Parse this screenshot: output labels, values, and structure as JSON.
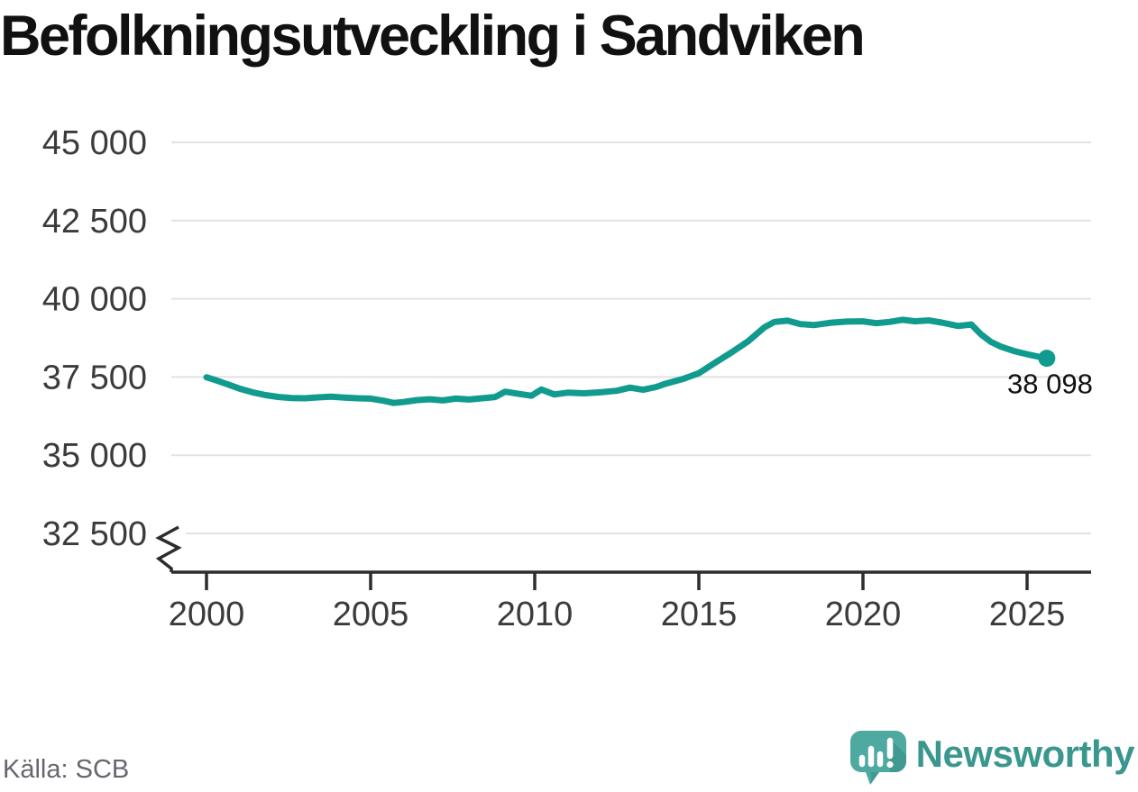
{
  "title": "Befolkningsutveckling i Sandviken",
  "source": "Källa: SCB",
  "branding": {
    "name": "Newsworthy",
    "icon": "newsworthy-speech-bubble-bar-chart-icon"
  },
  "colors": {
    "background": "#ffffff",
    "line": "#119b8e",
    "end_dot": "#119b8e",
    "grid": "#e2e2e2",
    "axis": "#2d2d2d",
    "tick_text": "#3b3b3b",
    "title_text": "#111111",
    "source_text": "#65676e",
    "end_label_text": "#111111",
    "logo_mark": "#4ea9a0",
    "logo_mark_shadow": "#41998f",
    "logo_text": "#3a978e"
  },
  "chart_data": {
    "type": "line",
    "title": "Befolkningsutveckling i Sandviken",
    "source": "Källa: SCB",
    "series_name": "Befolkning i Sandviken",
    "grid": "horizontal",
    "legend": "none",
    "axis_break_bottom_left": true,
    "ylim": [
      32500,
      45000
    ],
    "xlim": [
      2000,
      2025.6
    ],
    "y_ticks": [
      {
        "value": 45000,
        "label": "45 000"
      },
      {
        "value": 42500,
        "label": "42 500"
      },
      {
        "value": 40000,
        "label": "40 000"
      },
      {
        "value": 37500,
        "label": "37 500"
      },
      {
        "value": 35000,
        "label": "35 000"
      },
      {
        "value": 32500,
        "label": "32 500"
      }
    ],
    "x_ticks": [
      {
        "value": 2000,
        "label": "2000"
      },
      {
        "value": 2005,
        "label": "2005"
      },
      {
        "value": 2010,
        "label": "2010"
      },
      {
        "value": 2015,
        "label": "2015"
      },
      {
        "value": 2020,
        "label": "2020"
      },
      {
        "value": 2025,
        "label": "2025"
      }
    ],
    "points": [
      [
        2000.0,
        37490
      ],
      [
        2000.3,
        37390
      ],
      [
        2000.6,
        37280
      ],
      [
        2001.0,
        37130
      ],
      [
        2001.4,
        37010
      ],
      [
        2001.8,
        36920
      ],
      [
        2002.2,
        36860
      ],
      [
        2002.6,
        36830
      ],
      [
        2003.0,
        36820
      ],
      [
        2003.4,
        36850
      ],
      [
        2003.8,
        36870
      ],
      [
        2004.2,
        36840
      ],
      [
        2004.6,
        36820
      ],
      [
        2005.0,
        36810
      ],
      [
        2005.4,
        36740
      ],
      [
        2005.7,
        36670
      ],
      [
        2006.0,
        36700
      ],
      [
        2006.4,
        36760
      ],
      [
        2006.8,
        36790
      ],
      [
        2007.2,
        36750
      ],
      [
        2007.6,
        36810
      ],
      [
        2008.0,
        36780
      ],
      [
        2008.4,
        36820
      ],
      [
        2008.8,
        36860
      ],
      [
        2009.1,
        37030
      ],
      [
        2009.5,
        36960
      ],
      [
        2009.9,
        36900
      ],
      [
        2010.2,
        37100
      ],
      [
        2010.6,
        36940
      ],
      [
        2011.0,
        37000
      ],
      [
        2011.5,
        36980
      ],
      [
        2012.0,
        37010
      ],
      [
        2012.5,
        37060
      ],
      [
        2012.9,
        37160
      ],
      [
        2013.3,
        37090
      ],
      [
        2013.7,
        37180
      ],
      [
        2014.0,
        37290
      ],
      [
        2014.5,
        37430
      ],
      [
        2015.0,
        37620
      ],
      [
        2015.5,
        37960
      ],
      [
        2016.0,
        38290
      ],
      [
        2016.5,
        38640
      ],
      [
        2017.0,
        39090
      ],
      [
        2017.3,
        39260
      ],
      [
        2017.7,
        39300
      ],
      [
        2018.1,
        39190
      ],
      [
        2018.5,
        39160
      ],
      [
        2019.0,
        39230
      ],
      [
        2019.5,
        39270
      ],
      [
        2020.0,
        39280
      ],
      [
        2020.4,
        39220
      ],
      [
        2020.8,
        39260
      ],
      [
        2021.2,
        39330
      ],
      [
        2021.6,
        39280
      ],
      [
        2022.0,
        39310
      ],
      [
        2022.4,
        39240
      ],
      [
        2022.9,
        39130
      ],
      [
        2023.3,
        39180
      ],
      [
        2023.6,
        38860
      ],
      [
        2023.9,
        38620
      ],
      [
        2024.2,
        38470
      ],
      [
        2024.6,
        38330
      ],
      [
        2025.0,
        38230
      ],
      [
        2025.3,
        38160
      ],
      [
        2025.6,
        38098
      ]
    ],
    "end_point": {
      "x": 2025.6,
      "value": 38098,
      "label": "38 098"
    }
  }
}
